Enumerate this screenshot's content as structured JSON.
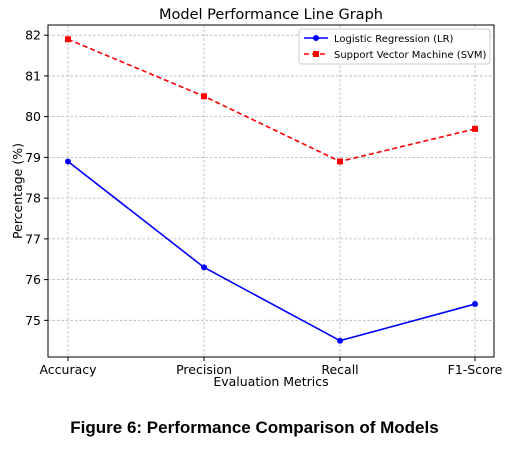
{
  "caption": "Figure 6: Performance Comparison of Models",
  "chart_data": {
    "type": "line",
    "title": "Model Performance Line Graph",
    "xlabel": "Evaluation Metrics",
    "ylabel": "Percentage (%)",
    "categories": [
      "Accuracy",
      "Precision",
      "Recall",
      "F1-Score"
    ],
    "ylim": [
      74.1,
      82.25
    ],
    "yticks": [
      75,
      76,
      77,
      78,
      79,
      80,
      81,
      82
    ],
    "grid": true,
    "legend_position": "top-right",
    "series": [
      {
        "name": "Logistic Regression (LR)",
        "values": [
          78.9,
          76.3,
          74.5,
          75.4
        ],
        "color": "#0000ff",
        "line_style": "solid",
        "marker": "circle"
      },
      {
        "name": "Support Vector Machine (SVM)",
        "values": [
          81.9,
          80.5,
          78.9,
          79.7
        ],
        "color": "#ff0000",
        "line_style": "dashed",
        "marker": "square"
      }
    ]
  }
}
